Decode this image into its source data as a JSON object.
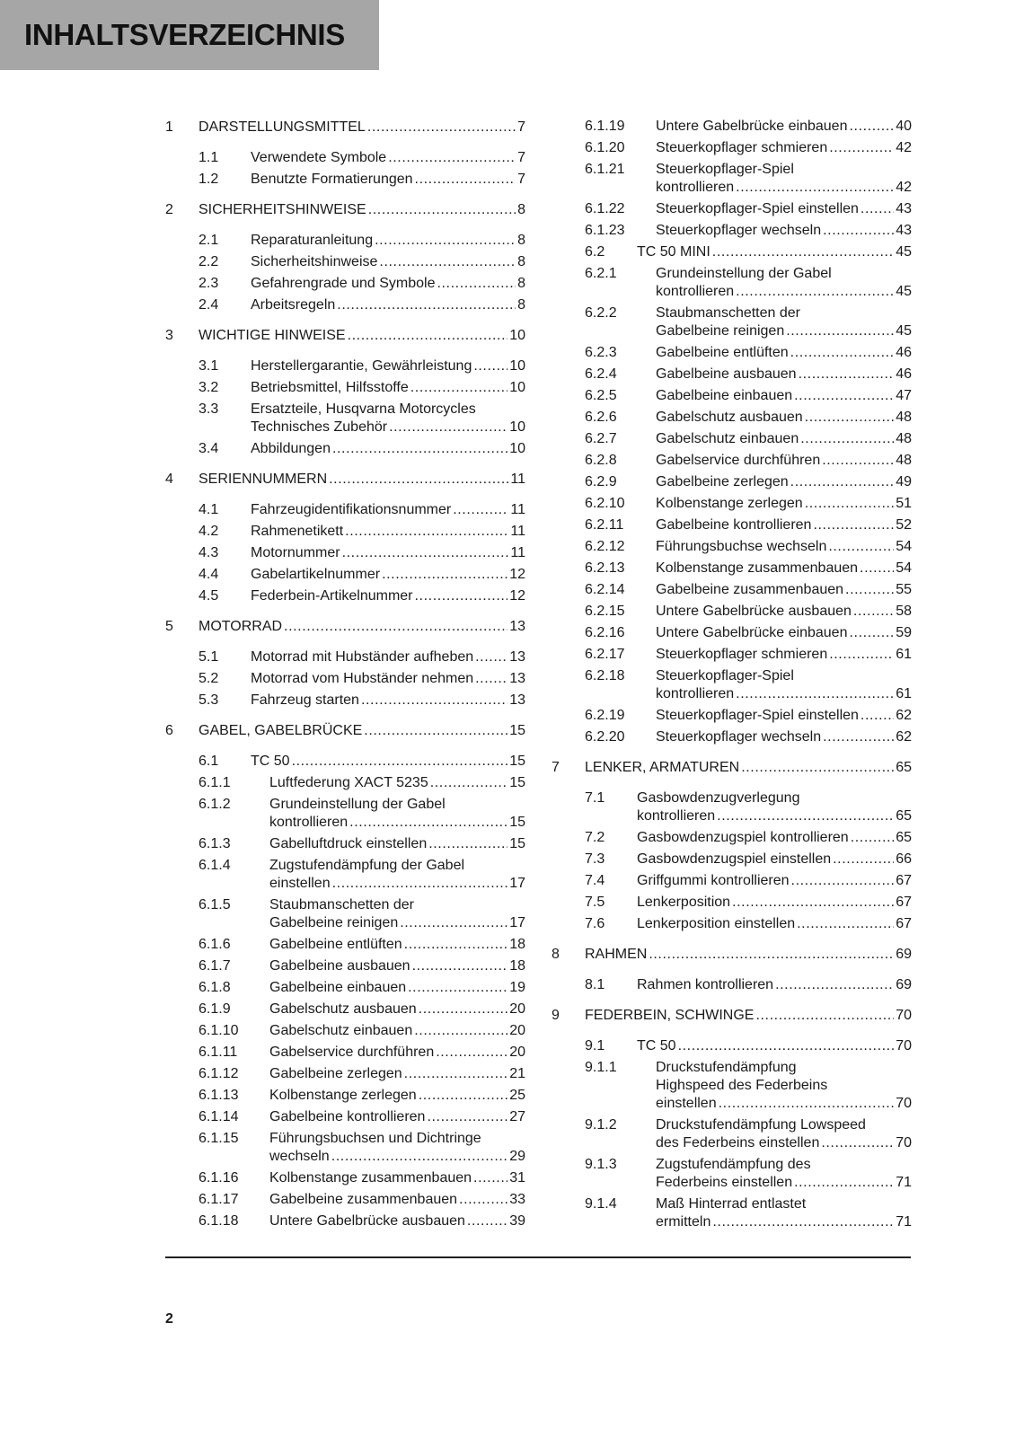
{
  "header": {
    "title": "INHALTSVERZEICHNIS",
    "band_color": "#a6a6a6"
  },
  "toc_left": [
    {
      "level": 1,
      "num": "1",
      "lines": [
        "DARSTELLUNGSMITTEL"
      ],
      "page": "7"
    },
    {
      "level": 2,
      "num": "1.1",
      "lines": [
        "Verwendete Symbole"
      ],
      "page": "7"
    },
    {
      "level": 2,
      "num": "1.2",
      "lines": [
        "Benutzte Formatierungen"
      ],
      "page": "7"
    },
    {
      "level": 1,
      "num": "2",
      "lines": [
        "SICHERHEITSHINWEISE"
      ],
      "page": "8"
    },
    {
      "level": 2,
      "num": "2.1",
      "lines": [
        "Reparaturanleitung"
      ],
      "page": "8"
    },
    {
      "level": 2,
      "num": "2.2",
      "lines": [
        "Sicherheitshinweise"
      ],
      "page": "8"
    },
    {
      "level": 2,
      "num": "2.3",
      "lines": [
        "Gefahrengrade und Symbole"
      ],
      "page": "8"
    },
    {
      "level": 2,
      "num": "2.4",
      "lines": [
        "Arbeitsregeln"
      ],
      "page": "8"
    },
    {
      "level": 1,
      "num": "3",
      "lines": [
        "WICHTIGE HINWEISE"
      ],
      "page": "10"
    },
    {
      "level": 2,
      "num": "3.1",
      "lines": [
        "Herstellergarantie, Gewährleistung"
      ],
      "page": "10"
    },
    {
      "level": 2,
      "num": "3.2",
      "lines": [
        "Betriebsmittel, Hilfsstoffe"
      ],
      "page": "10"
    },
    {
      "level": 2,
      "num": "3.3",
      "lines": [
        "Ersatzteile, Husqvarna Motorcycles",
        "Technisches Zubehör"
      ],
      "page": "10"
    },
    {
      "level": 2,
      "num": "3.4",
      "lines": [
        "Abbildungen"
      ],
      "page": "10"
    },
    {
      "level": 1,
      "num": "4",
      "lines": [
        "SERIENNUMMERN"
      ],
      "page": "11"
    },
    {
      "level": 2,
      "num": "4.1",
      "lines": [
        "Fahrzeugidentifikationsnummer"
      ],
      "page": "11"
    },
    {
      "level": 2,
      "num": "4.2",
      "lines": [
        "Rahmenetikett"
      ],
      "page": "11"
    },
    {
      "level": 2,
      "num": "4.3",
      "lines": [
        "Motornummer"
      ],
      "page": "11"
    },
    {
      "level": 2,
      "num": "4.4",
      "lines": [
        "Gabelartikelnummer"
      ],
      "page": "12"
    },
    {
      "level": 2,
      "num": "4.5",
      "lines": [
        "Federbein-Artikelnummer"
      ],
      "page": "12"
    },
    {
      "level": 1,
      "num": "5",
      "lines": [
        "MOTORRAD"
      ],
      "page": "13"
    },
    {
      "level": 2,
      "num": "5.1",
      "lines": [
        "Motorrad mit Hubständer aufheben"
      ],
      "page": "13"
    },
    {
      "level": 2,
      "num": "5.2",
      "lines": [
        "Motorrad vom Hubständer nehmen"
      ],
      "page": "13"
    },
    {
      "level": 2,
      "num": "5.3",
      "lines": [
        "Fahrzeug starten"
      ],
      "page": "13"
    },
    {
      "level": 1,
      "num": "6",
      "lines": [
        "GABEL, GABELBRÜCKE"
      ],
      "page": "15"
    },
    {
      "level": 2,
      "num": "6.1",
      "lines": [
        "TC 50"
      ],
      "page": "15"
    },
    {
      "level": 3,
      "num": "6.1.1",
      "lines": [
        "Luftfederung XACT 5235"
      ],
      "page": "15"
    },
    {
      "level": 3,
      "num": "6.1.2",
      "lines": [
        "Grundeinstellung der Gabel",
        "kontrollieren"
      ],
      "page": "15"
    },
    {
      "level": 3,
      "num": "6.1.3",
      "lines": [
        "Gabelluftdruck einstellen"
      ],
      "page": "15"
    },
    {
      "level": 3,
      "num": "6.1.4",
      "lines": [
        "Zugstufendämpfung der Gabel",
        "einstellen"
      ],
      "page": "17"
    },
    {
      "level": 3,
      "num": "6.1.5",
      "lines": [
        "Staubmanschetten der",
        "Gabelbeine reinigen"
      ],
      "page": "17"
    },
    {
      "level": 3,
      "num": "6.1.6",
      "lines": [
        "Gabelbeine entlüften"
      ],
      "page": "18"
    },
    {
      "level": 3,
      "num": "6.1.7",
      "lines": [
        "Gabelbeine ausbauen"
      ],
      "page": "18"
    },
    {
      "level": 3,
      "num": "6.1.8",
      "lines": [
        "Gabelbeine einbauen"
      ],
      "page": "19"
    },
    {
      "level": 3,
      "num": "6.1.9",
      "lines": [
        "Gabelschutz ausbauen"
      ],
      "page": "20"
    },
    {
      "level": 3,
      "num": "6.1.10",
      "lines": [
        "Gabelschutz einbauen"
      ],
      "page": "20"
    },
    {
      "level": 3,
      "num": "6.1.11",
      "lines": [
        "Gabelservice durchführen"
      ],
      "page": "20"
    },
    {
      "level": 3,
      "num": "6.1.12",
      "lines": [
        "Gabelbeine zerlegen"
      ],
      "page": "21"
    },
    {
      "level": 3,
      "num": "6.1.13",
      "lines": [
        "Kolbenstange zerlegen"
      ],
      "page": "25"
    },
    {
      "level": 3,
      "num": "6.1.14",
      "lines": [
        "Gabelbeine kontrollieren"
      ],
      "page": "27"
    },
    {
      "level": 3,
      "num": "6.1.15",
      "lines": [
        "Führungsbuchsen und Dichtringe",
        "wechseln"
      ],
      "page": "29"
    },
    {
      "level": 3,
      "num": "6.1.16",
      "lines": [
        "Kolbenstange zusammenbauen"
      ],
      "page": "31"
    },
    {
      "level": 3,
      "num": "6.1.17",
      "lines": [
        "Gabelbeine zusammenbauen"
      ],
      "page": "33"
    },
    {
      "level": 3,
      "num": "6.1.18",
      "lines": [
        "Untere Gabelbrücke ausbauen"
      ],
      "page": "39"
    }
  ],
  "toc_right": [
    {
      "level": 3,
      "num": "6.1.19",
      "lines": [
        "Untere Gabelbrücke einbauen"
      ],
      "page": "40"
    },
    {
      "level": 3,
      "num": "6.1.20",
      "lines": [
        "Steuerkopflager schmieren"
      ],
      "page": "42"
    },
    {
      "level": 3,
      "num": "6.1.21",
      "lines": [
        "Steuerkopflager-Spiel",
        "kontrollieren"
      ],
      "page": "42"
    },
    {
      "level": 3,
      "num": "6.1.22",
      "lines": [
        "Steuerkopflager-Spiel einstellen"
      ],
      "page": "43"
    },
    {
      "level": 3,
      "num": "6.1.23",
      "lines": [
        "Steuerkopflager wechseln"
      ],
      "page": "43"
    },
    {
      "level": 2,
      "num": "6.2",
      "lines": [
        "TC 50 MINI"
      ],
      "page": "45"
    },
    {
      "level": 3,
      "num": "6.2.1",
      "lines": [
        "Grundeinstellung der Gabel",
        "kontrollieren"
      ],
      "page": "45"
    },
    {
      "level": 3,
      "num": "6.2.2",
      "lines": [
        "Staubmanschetten der",
        "Gabelbeine reinigen"
      ],
      "page": "45"
    },
    {
      "level": 3,
      "num": "6.2.3",
      "lines": [
        "Gabelbeine entlüften"
      ],
      "page": "46"
    },
    {
      "level": 3,
      "num": "6.2.4",
      "lines": [
        "Gabelbeine ausbauen"
      ],
      "page": "46"
    },
    {
      "level": 3,
      "num": "6.2.5",
      "lines": [
        "Gabelbeine einbauen"
      ],
      "page": "47"
    },
    {
      "level": 3,
      "num": "6.2.6",
      "lines": [
        "Gabelschutz ausbauen"
      ],
      "page": "48"
    },
    {
      "level": 3,
      "num": "6.2.7",
      "lines": [
        "Gabelschutz einbauen"
      ],
      "page": "48"
    },
    {
      "level": 3,
      "num": "6.2.8",
      "lines": [
        "Gabelservice durchführen"
      ],
      "page": "48"
    },
    {
      "level": 3,
      "num": "6.2.9",
      "lines": [
        "Gabelbeine zerlegen"
      ],
      "page": "49"
    },
    {
      "level": 3,
      "num": "6.2.10",
      "lines": [
        "Kolbenstange zerlegen"
      ],
      "page": "51"
    },
    {
      "level": 3,
      "num": "6.2.11",
      "lines": [
        "Gabelbeine kontrollieren"
      ],
      "page": "52"
    },
    {
      "level": 3,
      "num": "6.2.12",
      "lines": [
        "Führungsbuchse wechseln"
      ],
      "page": "54"
    },
    {
      "level": 3,
      "num": "6.2.13",
      "lines": [
        "Kolbenstange zusammenbauen"
      ],
      "page": "54"
    },
    {
      "level": 3,
      "num": "6.2.14",
      "lines": [
        "Gabelbeine zusammenbauen"
      ],
      "page": "55"
    },
    {
      "level": 3,
      "num": "6.2.15",
      "lines": [
        "Untere Gabelbrücke ausbauen"
      ],
      "page": "58"
    },
    {
      "level": 3,
      "num": "6.2.16",
      "lines": [
        "Untere Gabelbrücke einbauen"
      ],
      "page": "59"
    },
    {
      "level": 3,
      "num": "6.2.17",
      "lines": [
        "Steuerkopflager schmieren"
      ],
      "page": "61"
    },
    {
      "level": 3,
      "num": "6.2.18",
      "lines": [
        "Steuerkopflager-Spiel",
        "kontrollieren"
      ],
      "page": "61"
    },
    {
      "level": 3,
      "num": "6.2.19",
      "lines": [
        "Steuerkopflager-Spiel einstellen"
      ],
      "page": "62"
    },
    {
      "level": 3,
      "num": "6.2.20",
      "lines": [
        "Steuerkopflager wechseln"
      ],
      "page": "62"
    },
    {
      "level": 1,
      "num": "7",
      "lines": [
        "LENKER, ARMATUREN"
      ],
      "page": "65"
    },
    {
      "level": 2,
      "num": "7.1",
      "lines": [
        "Gasbowdenzugverlegung",
        "kontrollieren"
      ],
      "page": "65"
    },
    {
      "level": 2,
      "num": "7.2",
      "lines": [
        "Gasbowdenzugspiel kontrollieren"
      ],
      "page": "65"
    },
    {
      "level": 2,
      "num": "7.3",
      "lines": [
        "Gasbowdenzugspiel einstellen"
      ],
      "page": "66"
    },
    {
      "level": 2,
      "num": "7.4",
      "lines": [
        "Griffgummi kontrollieren"
      ],
      "page": "67"
    },
    {
      "level": 2,
      "num": "7.5",
      "lines": [
        "Lenkerposition"
      ],
      "page": "67"
    },
    {
      "level": 2,
      "num": "7.6",
      "lines": [
        "Lenkerposition einstellen"
      ],
      "page": "67"
    },
    {
      "level": 1,
      "num": "8",
      "lines": [
        "RAHMEN"
      ],
      "page": "69"
    },
    {
      "level": 2,
      "num": "8.1",
      "lines": [
        "Rahmen kontrollieren"
      ],
      "page": "69"
    },
    {
      "level": 1,
      "num": "9",
      "lines": [
        "FEDERBEIN, SCHWINGE"
      ],
      "page": "70"
    },
    {
      "level": 2,
      "num": "9.1",
      "lines": [
        "TC 50"
      ],
      "page": "70"
    },
    {
      "level": 3,
      "num": "9.1.1",
      "lines": [
        "Druckstufendämpfung",
        "Highspeed des Federbeins",
        "einstellen"
      ],
      "page": "70"
    },
    {
      "level": 3,
      "num": "9.1.2",
      "lines": [
        "Druckstufendämpfung Lowspeed",
        "des Federbeins einstellen"
      ],
      "page": "70"
    },
    {
      "level": 3,
      "num": "9.1.3",
      "lines": [
        "Zugstufendämpfung des",
        "Federbeins einstellen"
      ],
      "page": "71"
    },
    {
      "level": 3,
      "num": "9.1.4",
      "lines": [
        "Maß Hinterrad entlastet",
        "ermitteln"
      ],
      "page": "71"
    }
  ],
  "footer": {
    "page_number": "2"
  }
}
